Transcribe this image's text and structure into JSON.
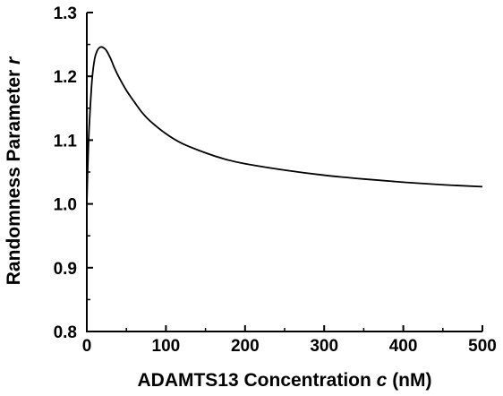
{
  "chart_data": {
    "type": "line",
    "xlabel": "ADAMTS13 Concentration ",
    "xlabel_var": "c",
    "xlabel_unit": " (nM)",
    "ylabel": "Randomness Parameter ",
    "ylabel_var": "r",
    "xlim": [
      0,
      500
    ],
    "ylim": [
      0.8,
      1.3
    ],
    "xticks": [
      0,
      100,
      200,
      300,
      400,
      500
    ],
    "xtick_labels": [
      "0",
      "100",
      "200",
      "300",
      "400",
      "500"
    ],
    "yticks": [
      0.8,
      0.9,
      1.0,
      1.1,
      1.2,
      1.3
    ],
    "ytick_labels": [
      "0.8",
      "0.9",
      "1.0",
      "1.1",
      "1.2",
      "1.3"
    ],
    "grid": false,
    "series": [
      {
        "x": [
          0,
          1,
          2,
          3,
          5,
          7,
          10,
          13,
          16,
          19,
          22,
          25,
          30,
          35,
          40,
          50,
          60,
          70,
          80,
          100,
          120,
          150,
          175,
          200,
          250,
          300,
          350,
          400,
          450,
          500
        ],
        "values": [
          1.0,
          1.05,
          1.09,
          1.12,
          1.165,
          1.2,
          1.228,
          1.24,
          1.245,
          1.246,
          1.244,
          1.24,
          1.228,
          1.213,
          1.2,
          1.178,
          1.16,
          1.143,
          1.13,
          1.11,
          1.095,
          1.08,
          1.07,
          1.063,
          1.053,
          1.045,
          1.039,
          1.034,
          1.03,
          1.027
        ]
      }
    ]
  }
}
